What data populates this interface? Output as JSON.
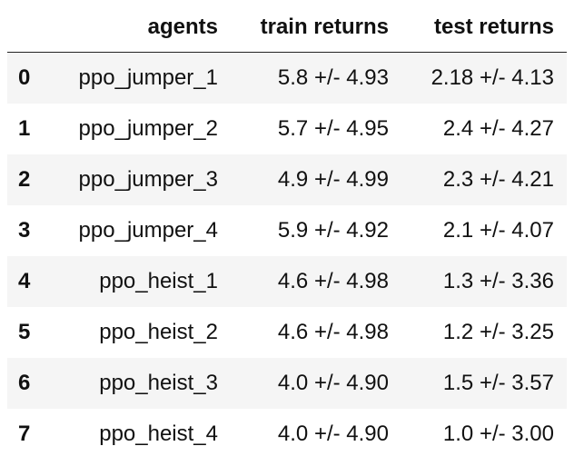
{
  "table": {
    "index_header": "",
    "columns": [
      "agents",
      "train returns",
      "test returns"
    ],
    "rows": [
      {
        "index": "0",
        "agents": "ppo_jumper_1",
        "train": "5.8 +/- 4.93",
        "test": "2.18 +/- 4.13"
      },
      {
        "index": "1",
        "agents": "ppo_jumper_2",
        "train": "5.7 +/- 4.95",
        "test": "2.4 +/- 4.27"
      },
      {
        "index": "2",
        "agents": "ppo_jumper_3",
        "train": "4.9 +/- 4.99",
        "test": "2.3 +/- 4.21"
      },
      {
        "index": "3",
        "agents": "ppo_jumper_4",
        "train": "5.9 +/- 4.92",
        "test": "2.1 +/- 4.07"
      },
      {
        "index": "4",
        "agents": "ppo_heist_1",
        "train": "4.6 +/- 4.98",
        "test": "1.3 +/- 3.36"
      },
      {
        "index": "5",
        "agents": "ppo_heist_2",
        "train": "4.6 +/- 4.98",
        "test": "1.2 +/- 3.25"
      },
      {
        "index": "6",
        "agents": "ppo_heist_3",
        "train": "4.0 +/- 4.90",
        "test": "1.5 +/- 3.57"
      },
      {
        "index": "7",
        "agents": "ppo_heist_4",
        "train": "4.0 +/- 4.90",
        "test": "1.0 +/- 3.00"
      }
    ]
  },
  "colors": {
    "stripe": "#f5f5f5",
    "text": "#111111",
    "header_rule": "#222222"
  }
}
